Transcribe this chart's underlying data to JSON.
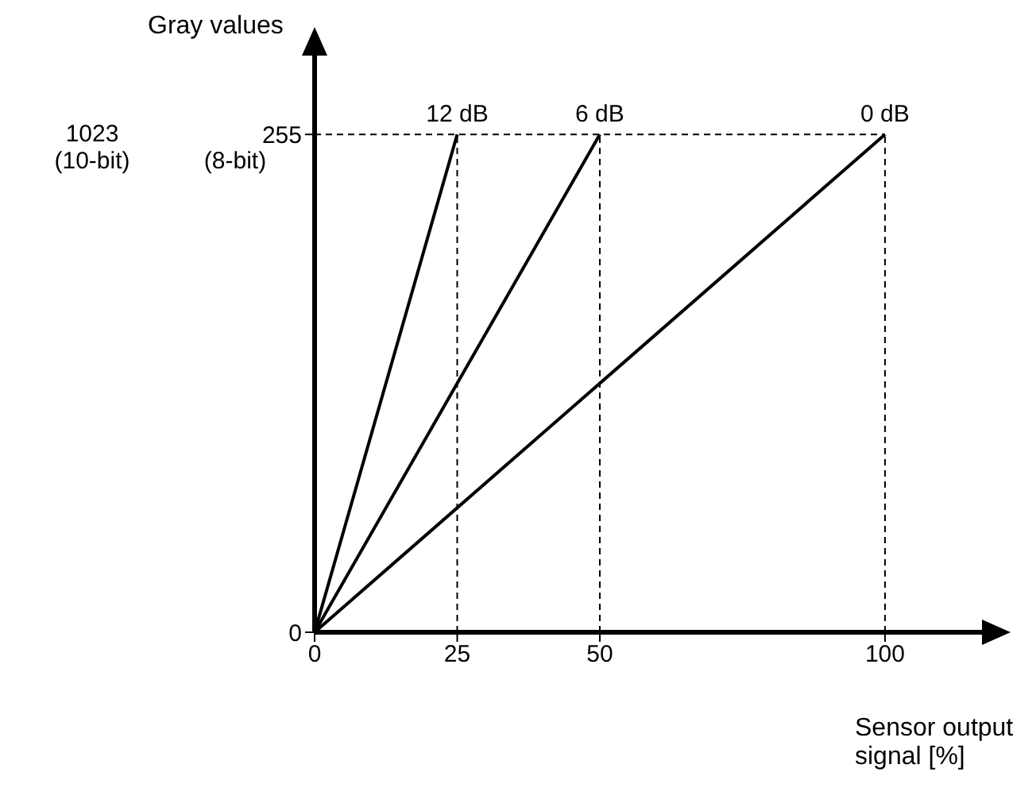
{
  "chart_data": {
    "type": "line",
    "xlabel": "Sensor output signal [%]",
    "ylabel": "Gray values",
    "xlim": [
      0,
      117
    ],
    "xticks": [
      0,
      25,
      50,
      100
    ],
    "ylim": [
      0,
      297
    ],
    "yticks": [
      0,
      255
    ],
    "series": [
      {
        "name": "12 dB",
        "color": "#000000",
        "x": [
          0,
          25
        ],
        "values": [
          0,
          255
        ]
      },
      {
        "name": "6 dB",
        "color": "#000000",
        "x": [
          0,
          50
        ],
        "values": [
          0,
          255
        ]
      },
      {
        "name": "0 dB",
        "color": "#000000",
        "x": [
          0,
          100
        ],
        "values": [
          0,
          255
        ]
      }
    ],
    "ref_lines": [
      {
        "axis": "x",
        "value": 25,
        "color": "#000000",
        "line_style": "dashed"
      },
      {
        "axis": "x",
        "value": 50,
        "color": "#000000",
        "line_style": "dashed"
      },
      {
        "axis": "x",
        "value": 100,
        "color": "#000000",
        "line_style": "dashed"
      },
      {
        "axis": "y",
        "value": 255,
        "color": "#000000",
        "line_style": "dashed"
      }
    ],
    "annotations": [
      "1023 (10-bit)",
      "(8-bit)"
    ],
    "marker": "none",
    "line_style": "solid",
    "grid": false,
    "legend": false
  }
}
